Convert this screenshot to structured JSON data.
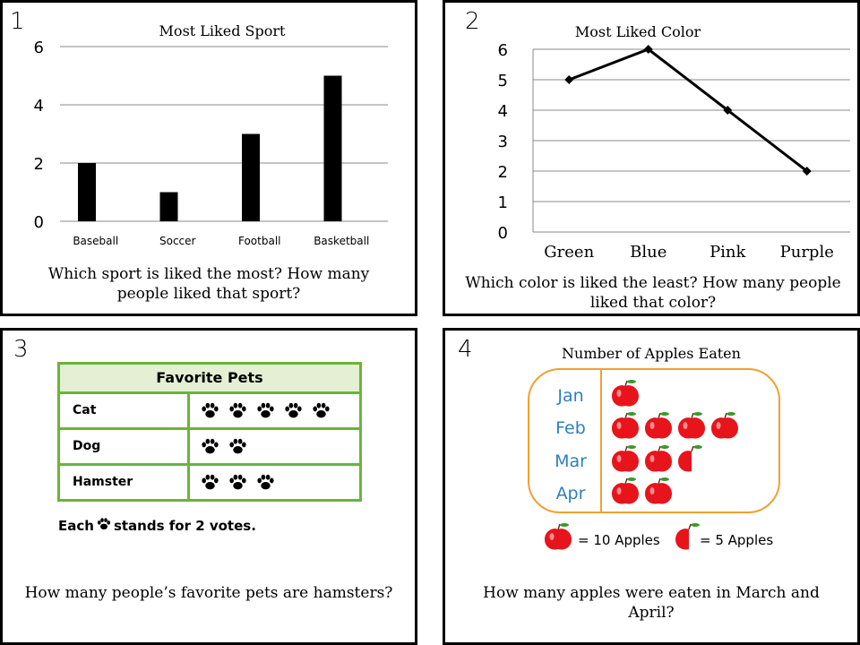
{
  "cards": {
    "c1": {
      "number": "1",
      "question": "Which sport is liked the most? How many people liked that sport?"
    },
    "c2": {
      "number": "2",
      "question": "Which color is liked the least? How many people liked that color?"
    },
    "c3": {
      "number": "3",
      "question": "How many people’s favorite pets are hamsters?"
    },
    "c4": {
      "number": "4",
      "question": "How many apples were eaten in March and April?"
    }
  },
  "chart_data": [
    {
      "type": "bar",
      "title": "Most Liked Sport",
      "categories": [
        "Baseball",
        "Soccer",
        "Football",
        "Basketball"
      ],
      "values": [
        2,
        1,
        3,
        5
      ],
      "ylim": [
        0,
        6
      ],
      "yticks": [
        "0",
        "2",
        "4",
        "6"
      ],
      "xlabel": "",
      "ylabel": "",
      "grid": true,
      "color": "#000000"
    },
    {
      "type": "line",
      "title": "Most Liked Color",
      "categories": [
        "Green",
        "Blue",
        "Pink",
        "Purple"
      ],
      "values": [
        5,
        6,
        4,
        2
      ],
      "ylim": [
        0,
        6
      ],
      "yticks": [
        "0",
        "1",
        "2",
        "3",
        "4",
        "5",
        "6"
      ],
      "xlabel": "",
      "ylabel": "",
      "grid": true,
      "color": "#000000"
    },
    {
      "type": "table",
      "title": "Favorite Pets",
      "rows": [
        {
          "label": "Cat",
          "count": 5
        },
        {
          "label": "Dog",
          "count": 2
        },
        {
          "label": "Hamster",
          "count": 3
        }
      ],
      "key": {
        "prefix": "Each",
        "suffix": "stands for 2 votes."
      },
      "border_color": "#6ab43a",
      "header_bg": "#e5efd3"
    },
    {
      "type": "table",
      "title": "Number of Apples Eaten",
      "rows": [
        {
          "label": "Jan",
          "whole": 1,
          "half": 0
        },
        {
          "label": "Feb",
          "whole": 4,
          "half": 0
        },
        {
          "label": "Mar",
          "whole": 2,
          "half": 1
        },
        {
          "label": "Apr",
          "whole": 2,
          "half": 0
        }
      ],
      "key_whole": "= 10 Apples",
      "key_half": "= 5 Apples",
      "label_color": "#2e7fc1",
      "frame_color": "#f0a030",
      "apple_color": "#e8141b"
    }
  ]
}
